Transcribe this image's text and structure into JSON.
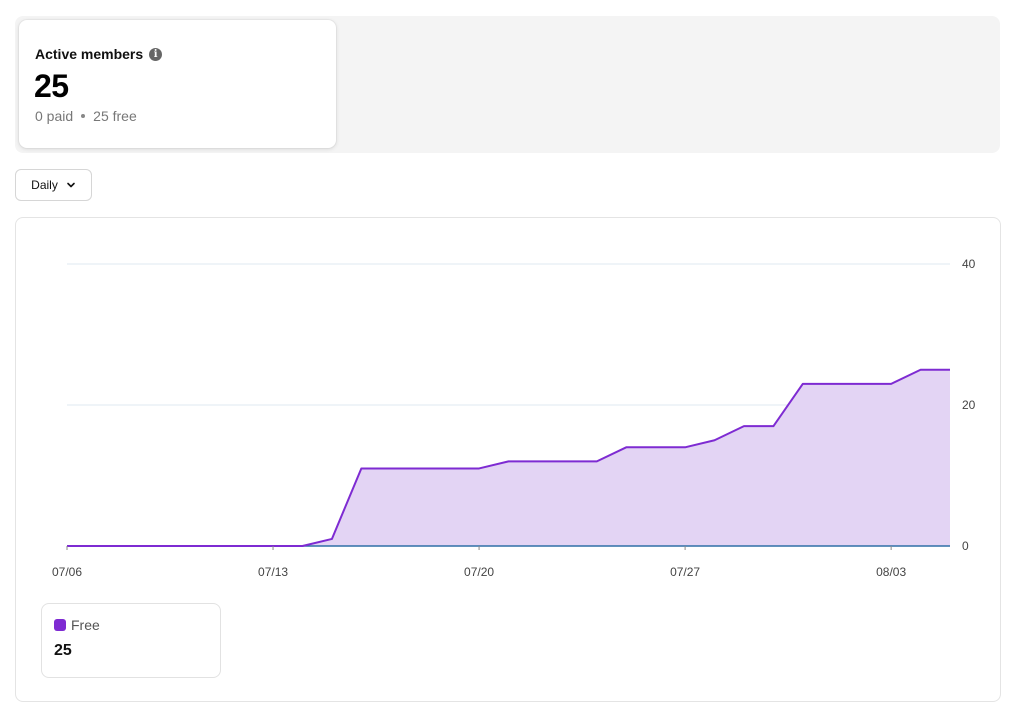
{
  "stats": {
    "title": "Active members",
    "value": "25",
    "paid": "0 paid",
    "free": "25 free"
  },
  "period_select": {
    "label": "Daily"
  },
  "legend": {
    "name": "Free",
    "value": "25"
  },
  "colors": {
    "line": "#7e2bd2",
    "fill": "#e3d4f4",
    "baseline": "#2f6fa6",
    "grid": "#dfeaf1"
  },
  "chart_data": {
    "type": "area",
    "title": "",
    "xlabel": "",
    "ylabel": "",
    "x_ticks": [
      "07/06",
      "07/13",
      "07/20",
      "07/27",
      "08/03"
    ],
    "y_ticks": [
      "0",
      "20",
      "40"
    ],
    "ylim": [
      0,
      40
    ],
    "y_axis_side": "right",
    "grid": true,
    "series": [
      {
        "name": "Free",
        "x": [
          "07/06",
          "07/07",
          "07/08",
          "07/09",
          "07/10",
          "07/11",
          "07/12",
          "07/13",
          "07/14",
          "07/15",
          "07/16",
          "07/17",
          "07/18",
          "07/19",
          "07/20",
          "07/21",
          "07/22",
          "07/23",
          "07/24",
          "07/25",
          "07/26",
          "07/27",
          "07/28",
          "07/29",
          "07/30",
          "07/31",
          "08/01",
          "08/02",
          "08/03",
          "08/04",
          "08/05"
        ],
        "values": [
          0,
          0,
          0,
          0,
          0,
          0,
          0,
          0,
          0,
          1,
          11,
          11,
          11,
          11,
          11,
          12,
          12,
          12,
          12,
          14,
          14,
          14,
          15,
          17,
          17,
          23,
          23,
          23,
          23,
          25,
          25
        ]
      }
    ]
  }
}
